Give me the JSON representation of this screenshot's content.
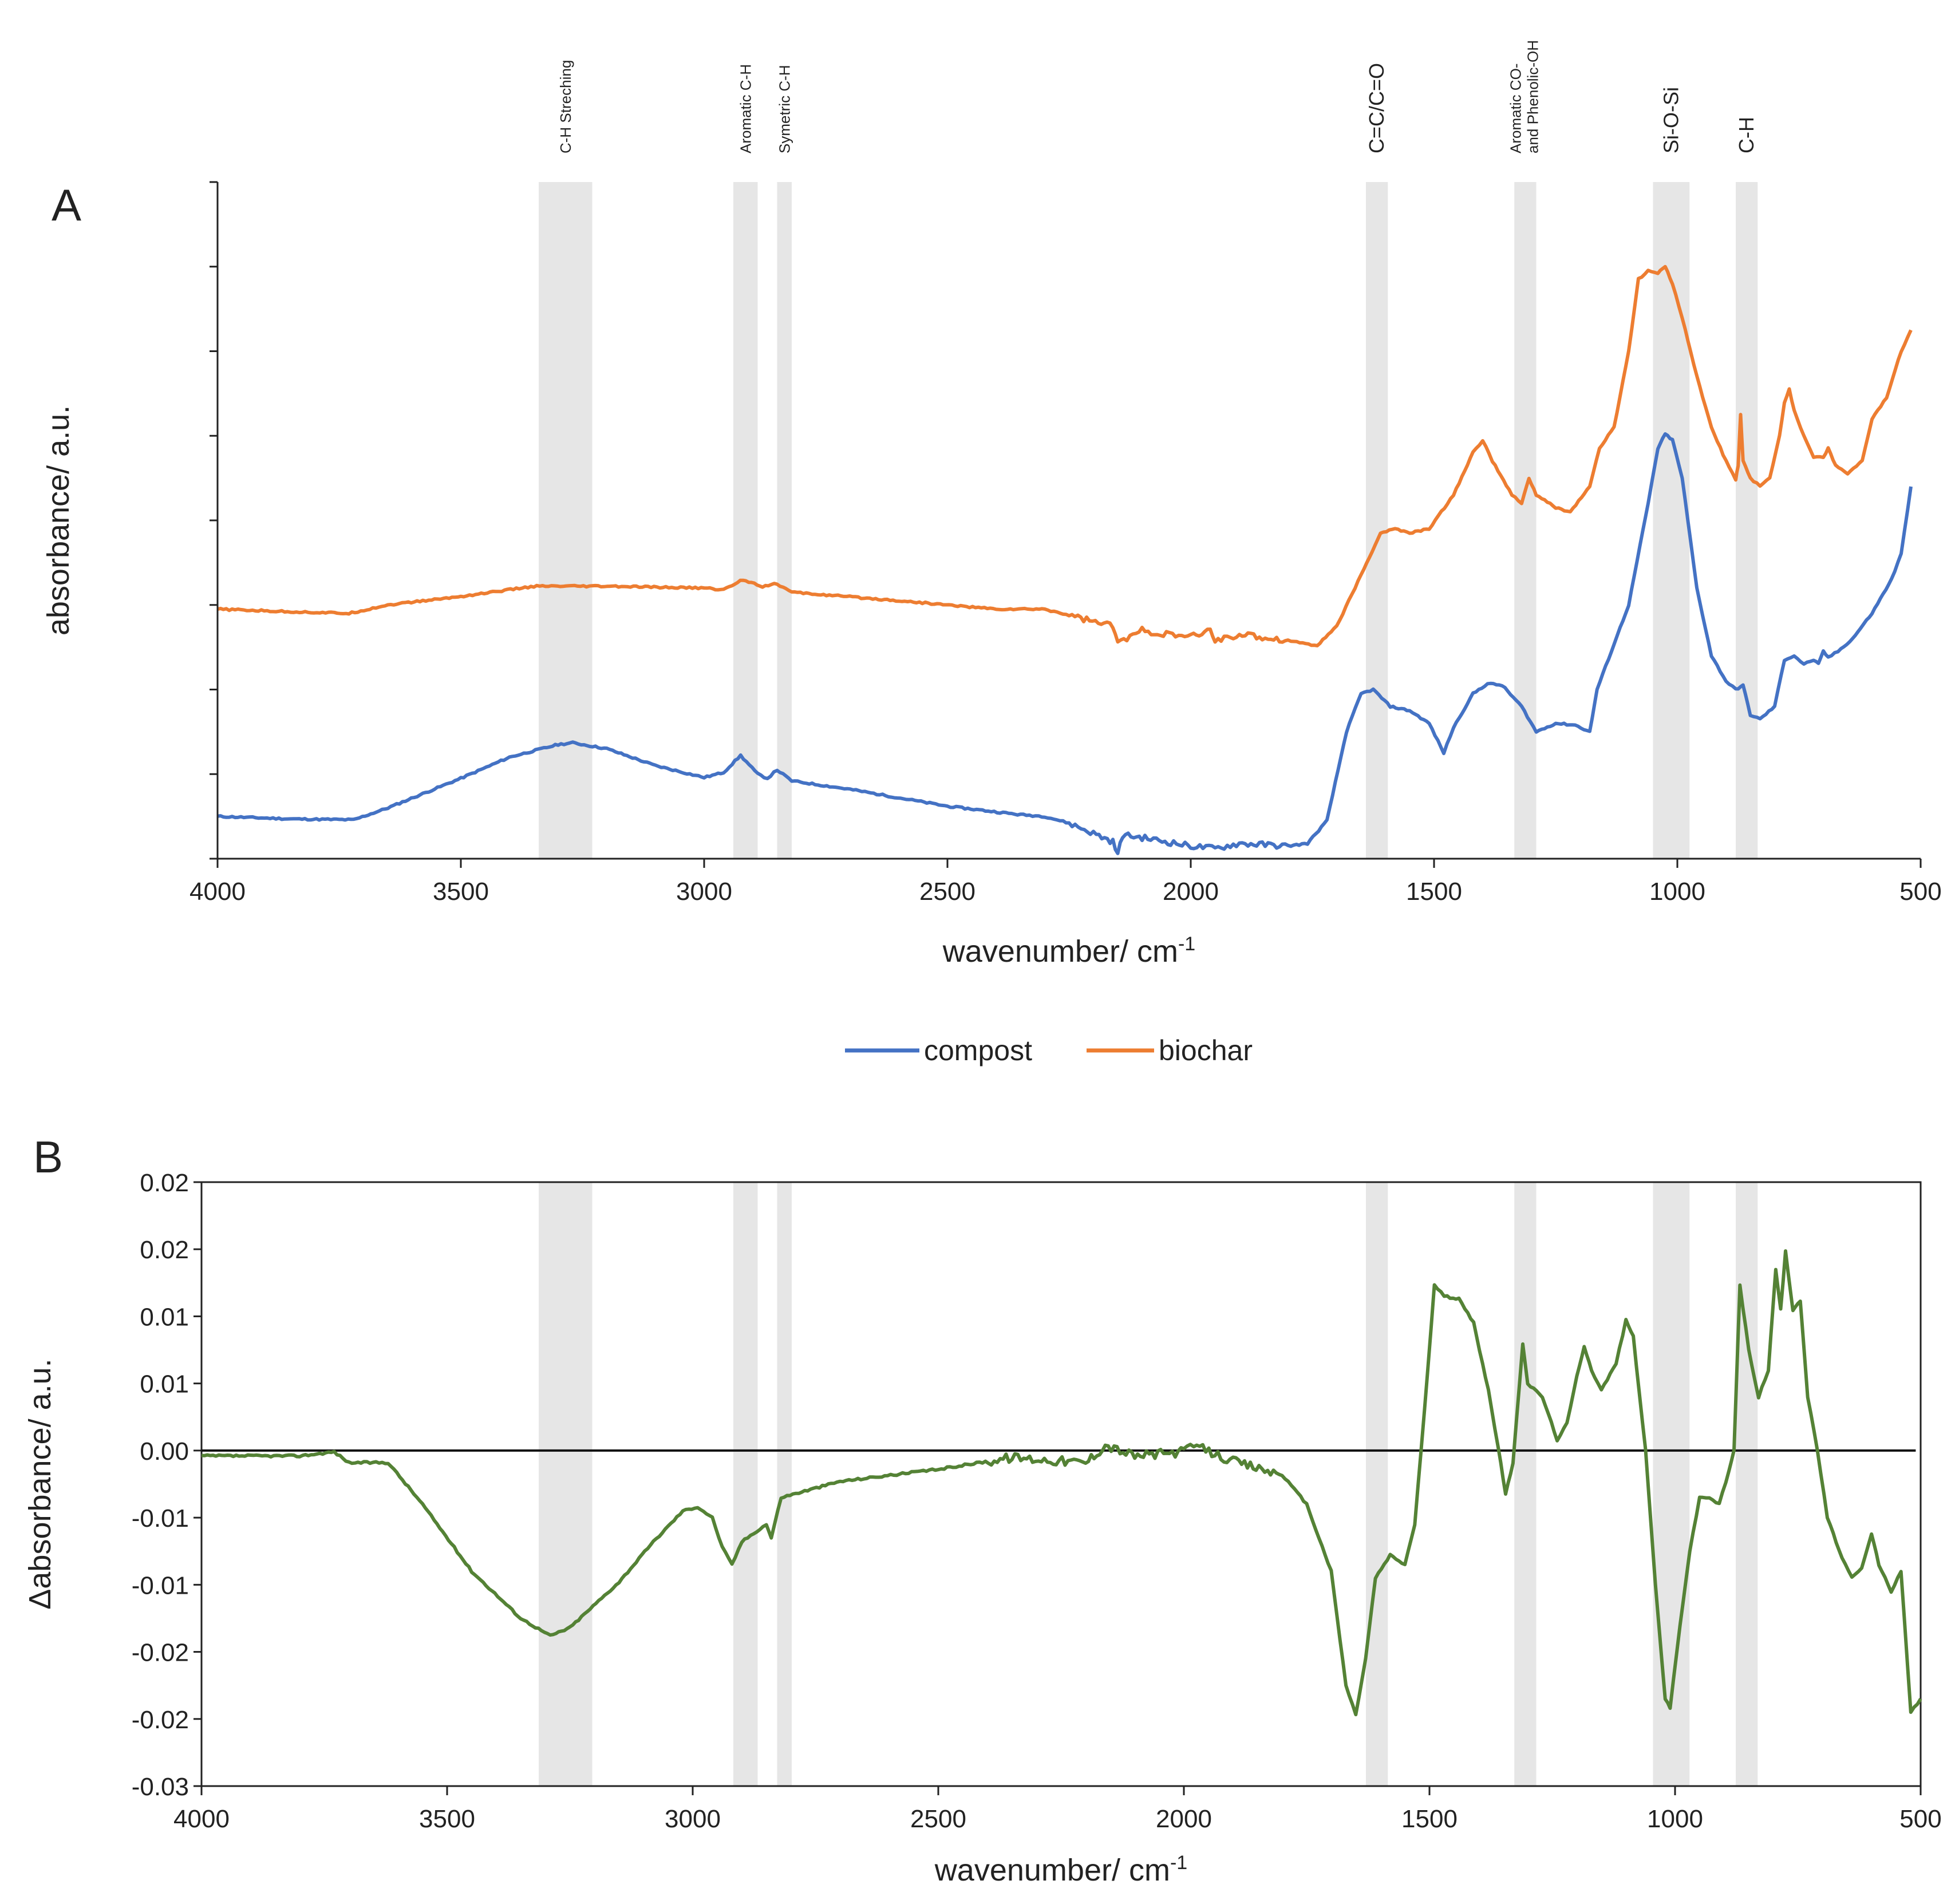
{
  "figure": {
    "panel_a_letter": "A",
    "panel_b_letter": "B"
  },
  "bands": [
    {
      "label": "C-H Streching",
      "from": 3340,
      "to": 3230,
      "size": "small"
    },
    {
      "label": "Aromatic C-H",
      "from": 2940,
      "to": 2890,
      "size": "small"
    },
    {
      "label": "Symetric C-H",
      "from": 2850,
      "to": 2820,
      "size": "small"
    },
    {
      "label": "C=C/C=O",
      "from": 1640,
      "to": 1595,
      "size": "large"
    },
    {
      "label": "Aromatic CO-\nand Phenolic-OH",
      "from": 1335,
      "to": 1290,
      "size": "small"
    },
    {
      "label": "Si-O-Si",
      "from": 1050,
      "to": 975,
      "size": "large"
    },
    {
      "label": "C-H",
      "from": 880,
      "to": 835,
      "size": "large"
    }
  ],
  "legend": [
    {
      "name": "compost",
      "color": "#4472c4"
    },
    {
      "name": "biochar",
      "color": "#ed7d31"
    }
  ],
  "chart_data": [
    {
      "type": "line",
      "title": "",
      "xlabel": "wavenumber/ cm",
      "xlabel_sup": "-1",
      "ylabel": "absorbance/ a.u.",
      "xlim": [
        4000,
        500
      ],
      "x_reversed": true,
      "x_ticks": [
        4000,
        3500,
        3000,
        2500,
        2000,
        1500,
        1000,
        500
      ],
      "ylim": [
        0,
        8
      ],
      "y_tick_labels_shown": false,
      "grid": false,
      "series": [
        {
          "name": "compost",
          "color": "#4472c4",
          "points": [
            [
              4000,
              0.5
            ],
            [
              3850,
              0.47
            ],
            [
              3720,
              0.46
            ],
            [
              3650,
              0.6
            ],
            [
              3500,
              0.95
            ],
            [
              3400,
              1.2
            ],
            [
              3300,
              1.35
            ],
            [
              3270,
              1.37
            ],
            [
              3200,
              1.3
            ],
            [
              3100,
              1.1
            ],
            [
              3000,
              0.96
            ],
            [
              2960,
              1.02
            ],
            [
              2925,
              1.22
            ],
            [
              2890,
              1.0
            ],
            [
              2870,
              0.95
            ],
            [
              2850,
              1.05
            ],
            [
              2820,
              0.92
            ],
            [
              2700,
              0.82
            ],
            [
              2500,
              0.62
            ],
            [
              2350,
              0.52
            ],
            [
              2300,
              0.5
            ],
            [
              2250,
              0.42
            ],
            [
              2200,
              0.3
            ],
            [
              2160,
              0.2
            ],
            [
              2150,
              0.05
            ],
            [
              2140,
              0.28
            ],
            [
              2100,
              0.25
            ],
            [
              2000,
              0.15
            ],
            [
              1950,
              0.12
            ],
            [
              1900,
              0.18
            ],
            [
              1800,
              0.15
            ],
            [
              1760,
              0.18
            ],
            [
              1720,
              0.45
            ],
            [
              1680,
              1.5
            ],
            [
              1650,
              1.95
            ],
            [
              1625,
              2.0
            ],
            [
              1590,
              1.8
            ],
            [
              1550,
              1.75
            ],
            [
              1510,
              1.6
            ],
            [
              1480,
              1.25
            ],
            [
              1460,
              1.55
            ],
            [
              1420,
              1.95
            ],
            [
              1390,
              2.07
            ],
            [
              1360,
              2.05
            ],
            [
              1320,
              1.8
            ],
            [
              1290,
              1.5
            ],
            [
              1250,
              1.6
            ],
            [
              1210,
              1.58
            ],
            [
              1180,
              1.5
            ],
            [
              1165,
              2.0
            ],
            [
              1100,
              3.0
            ],
            [
              1060,
              4.2
            ],
            [
              1040,
              4.85
            ],
            [
              1025,
              5.02
            ],
            [
              1010,
              4.95
            ],
            [
              990,
              4.5
            ],
            [
              960,
              3.2
            ],
            [
              930,
              2.4
            ],
            [
              900,
              2.1
            ],
            [
              880,
              2.0
            ],
            [
              865,
              2.05
            ],
            [
              850,
              1.7
            ],
            [
              830,
              1.65
            ],
            [
              800,
              1.8
            ],
            [
              780,
              2.35
            ],
            [
              760,
              2.4
            ],
            [
              740,
              2.3
            ],
            [
              720,
              2.35
            ],
            [
              710,
              2.3
            ],
            [
              700,
              2.45
            ],
            [
              690,
              2.38
            ],
            [
              670,
              2.45
            ],
            [
              640,
              2.6
            ],
            [
              600,
              2.9
            ],
            [
              560,
              3.3
            ],
            [
              540,
              3.6
            ],
            [
              520,
              4.4
            ]
          ]
        },
        {
          "name": "biochar",
          "color": "#ed7d31",
          "points": [
            [
              4000,
              2.95
            ],
            [
              3850,
              2.92
            ],
            [
              3730,
              2.9
            ],
            [
              3650,
              3.0
            ],
            [
              3500,
              3.1
            ],
            [
              3350,
              3.22
            ],
            [
              3200,
              3.22
            ],
            [
              3000,
              3.2
            ],
            [
              2960,
              3.18
            ],
            [
              2920,
              3.3
            ],
            [
              2880,
              3.22
            ],
            [
              2850,
              3.25
            ],
            [
              2820,
              3.15
            ],
            [
              2600,
              3.05
            ],
            [
              2400,
              2.95
            ],
            [
              2300,
              2.95
            ],
            [
              2250,
              2.88
            ],
            [
              2160,
              2.75
            ],
            [
              2150,
              2.55
            ],
            [
              2100,
              2.7
            ],
            [
              2050,
              2.65
            ],
            [
              2000,
              2.62
            ],
            [
              1960,
              2.7
            ],
            [
              1950,
              2.58
            ],
            [
              1900,
              2.65
            ],
            [
              1800,
              2.58
            ],
            [
              1740,
              2.52
            ],
            [
              1700,
              2.75
            ],
            [
              1650,
              3.35
            ],
            [
              1610,
              3.85
            ],
            [
              1580,
              3.9
            ],
            [
              1550,
              3.85
            ],
            [
              1510,
              3.9
            ],
            [
              1460,
              4.3
            ],
            [
              1420,
              4.8
            ],
            [
              1400,
              4.95
            ],
            [
              1380,
              4.7
            ],
            [
              1340,
              4.3
            ],
            [
              1320,
              4.2
            ],
            [
              1305,
              4.5
            ],
            [
              1290,
              4.3
            ],
            [
              1250,
              4.15
            ],
            [
              1220,
              4.1
            ],
            [
              1180,
              4.4
            ],
            [
              1160,
              4.85
            ],
            [
              1130,
              5.1
            ],
            [
              1100,
              6.0
            ],
            [
              1080,
              6.85
            ],
            [
              1060,
              6.95
            ],
            [
              1040,
              6.92
            ],
            [
              1025,
              7.0
            ],
            [
              1010,
              6.8
            ],
            [
              990,
              6.4
            ],
            [
              960,
              5.7
            ],
            [
              930,
              5.1
            ],
            [
              900,
              4.7
            ],
            [
              880,
              4.48
            ],
            [
              875,
              4.65
            ],
            [
              870,
              5.25
            ],
            [
              865,
              4.7
            ],
            [
              850,
              4.5
            ],
            [
              830,
              4.4
            ],
            [
              810,
              4.5
            ],
            [
              790,
              5.0
            ],
            [
              780,
              5.4
            ],
            [
              770,
              5.55
            ],
            [
              760,
              5.3
            ],
            [
              740,
              5.0
            ],
            [
              720,
              4.75
            ],
            [
              700,
              4.75
            ],
            [
              690,
              4.85
            ],
            [
              675,
              4.65
            ],
            [
              650,
              4.55
            ],
            [
              620,
              4.7
            ],
            [
              600,
              5.2
            ],
            [
              570,
              5.45
            ],
            [
              540,
              6.0
            ],
            [
              520,
              6.25
            ]
          ]
        }
      ]
    },
    {
      "type": "line",
      "title": "",
      "xlabel": "wavenumber/ cm",
      "xlabel_sup": "-1",
      "ylabel": "Δabsorbance/ a.u.",
      "xlim": [
        4000,
        500
      ],
      "x_reversed": true,
      "x_ticks": [
        4000,
        3500,
        3000,
        2500,
        2000,
        1500,
        1000,
        500
      ],
      "ylim": [
        -0.025,
        0.02
      ],
      "y_ticks": [
        0.02,
        0.015,
        0.01,
        0.005,
        0.0,
        -0.005,
        -0.01,
        -0.015,
        -0.02,
        -0.025
      ],
      "y_tick_labels": [
        "0.02",
        "0.02",
        "0.01",
        "0.01",
        "0.00",
        "-0.01",
        "-0.01",
        "-0.02",
        "-0.02",
        "-0.03"
      ],
      "zero_line": true,
      "grid": false,
      "series": [
        {
          "name": "difference",
          "color": "#548235",
          "points": [
            [
              4000,
              -0.0004
            ],
            [
              3900,
              -0.0004
            ],
            [
              3800,
              -0.0004
            ],
            [
              3730,
              -0.0001
            ],
            [
              3700,
              -0.0009
            ],
            [
              3620,
              -0.0009
            ],
            [
              3550,
              -0.004
            ],
            [
              3450,
              -0.009
            ],
            [
              3350,
              -0.0125
            ],
            [
              3290,
              -0.0138
            ],
            [
              3250,
              -0.0132
            ],
            [
              3150,
              -0.0098
            ],
            [
              3080,
              -0.0068
            ],
            [
              3020,
              -0.0045
            ],
            [
              2990,
              -0.0042
            ],
            [
              2960,
              -0.005
            ],
            [
              2940,
              -0.0072
            ],
            [
              2920,
              -0.0085
            ],
            [
              2900,
              -0.0068
            ],
            [
              2870,
              -0.006
            ],
            [
              2850,
              -0.0055
            ],
            [
              2840,
              -0.0065
            ],
            [
              2820,
              -0.0035
            ],
            [
              2700,
              -0.0023
            ],
            [
              2500,
              -0.0014
            ],
            [
              2350,
              -0.0005
            ],
            [
              2200,
              -0.0009
            ],
            [
              2160,
              0.0004
            ],
            [
              2100,
              -0.0004
            ],
            [
              2000,
              -0.0001
            ],
            [
              1980,
              0.0004
            ],
            [
              1900,
              -0.0008
            ],
            [
              1800,
              -0.0018
            ],
            [
              1750,
              -0.004
            ],
            [
              1700,
              -0.009
            ],
            [
              1670,
              -0.0175
            ],
            [
              1650,
              -0.0197
            ],
            [
              1630,
              -0.0155
            ],
            [
              1610,
              -0.0095
            ],
            [
              1580,
              -0.0078
            ],
            [
              1550,
              -0.0085
            ],
            [
              1530,
              -0.0055
            ],
            [
              1510,
              0.003
            ],
            [
              1490,
              0.0123
            ],
            [
              1470,
              0.0115
            ],
            [
              1440,
              0.0113
            ],
            [
              1410,
              0.0095
            ],
            [
              1380,
              0.0045
            ],
            [
              1360,
              0.0002
            ],
            [
              1345,
              -0.0032
            ],
            [
              1330,
              -0.001
            ],
            [
              1310,
              0.008
            ],
            [
              1300,
              0.005
            ],
            [
              1270,
              0.004
            ],
            [
              1240,
              0.0008
            ],
            [
              1220,
              0.002
            ],
            [
              1200,
              0.0055
            ],
            [
              1185,
              0.0078
            ],
            [
              1170,
              0.006
            ],
            [
              1150,
              0.0045
            ],
            [
              1120,
              0.0065
            ],
            [
              1100,
              0.0097
            ],
            [
              1085,
              0.0085
            ],
            [
              1060,
              0.0
            ],
            [
              1040,
              -0.01
            ],
            [
              1020,
              -0.0185
            ],
            [
              1010,
              -0.0192
            ],
            [
              990,
              -0.013
            ],
            [
              970,
              -0.0075
            ],
            [
              950,
              -0.0035
            ],
            [
              930,
              -0.0035
            ],
            [
              910,
              -0.004
            ],
            [
              890,
              -0.0015
            ],
            [
              880,
              0.0
            ],
            [
              868,
              0.0123
            ],
            [
              850,
              0.0075
            ],
            [
              830,
              0.004
            ],
            [
              810,
              0.006
            ],
            [
              795,
              0.0135
            ],
            [
              785,
              0.0105
            ],
            [
              775,
              0.0148
            ],
            [
              760,
              0.0105
            ],
            [
              745,
              0.0112
            ],
            [
              730,
              0.004
            ],
            [
              710,
              0.0
            ],
            [
              690,
              -0.005
            ],
            [
              660,
              -0.008
            ],
            [
              640,
              -0.0095
            ],
            [
              620,
              -0.0088
            ],
            [
              600,
              -0.0062
            ],
            [
              585,
              -0.0085
            ],
            [
              560,
              -0.0105
            ],
            [
              540,
              -0.009
            ],
            [
              520,
              -0.0195
            ],
            [
              500,
              -0.0185
            ]
          ]
        }
      ]
    }
  ]
}
